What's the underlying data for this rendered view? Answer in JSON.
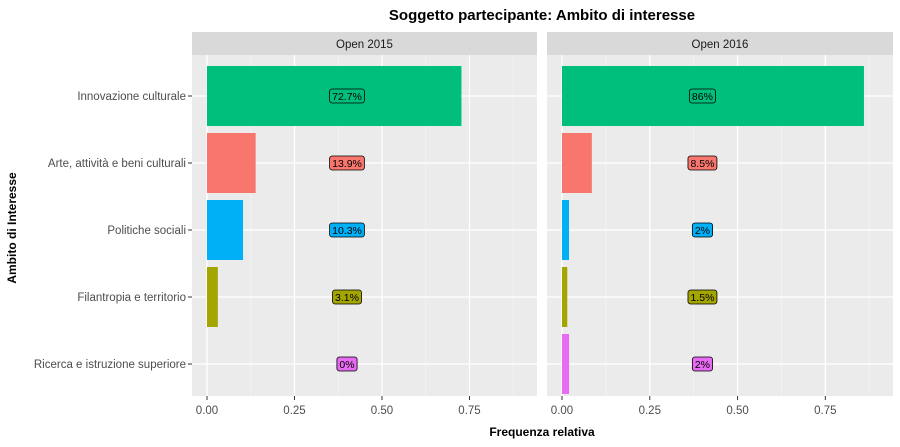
{
  "chart_data": {
    "type": "bar",
    "orientation": "horizontal",
    "title": "Soggetto partecipante: Ambito di interesse",
    "xlabel": "Frequenza relativa",
    "ylabel": "Ambito di Interesse",
    "xlim": [
      0,
      0.9
    ],
    "x_ticks": [
      "0.00",
      "0.25",
      "0.50",
      "0.75"
    ],
    "x_tick_values": [
      0,
      0.25,
      0.5,
      0.75
    ],
    "grid": true,
    "legend": "none",
    "categories": [
      "Innovazione culturale",
      "Arte, attività e beni culturali",
      "Politiche sociali",
      "Filantropia e territorio",
      "Ricerca e istruzione superiore"
    ],
    "colors": [
      "#00BF7D",
      "#F8766D",
      "#00B0F6",
      "#A3A500",
      "#E76BF3"
    ],
    "panels": [
      {
        "name": "Open 2015",
        "values": [
          0.727,
          0.139,
          0.103,
          0.031,
          0.0
        ],
        "labels": [
          "72.7%",
          "13.9%",
          "10.3%",
          "3.1%",
          "0%"
        ]
      },
      {
        "name": "Open 2016",
        "values": [
          0.86,
          0.085,
          0.02,
          0.015,
          0.02
        ],
        "labels": [
          "86%",
          "8.5%",
          "2%",
          "1.5%",
          "2%"
        ]
      }
    ]
  }
}
